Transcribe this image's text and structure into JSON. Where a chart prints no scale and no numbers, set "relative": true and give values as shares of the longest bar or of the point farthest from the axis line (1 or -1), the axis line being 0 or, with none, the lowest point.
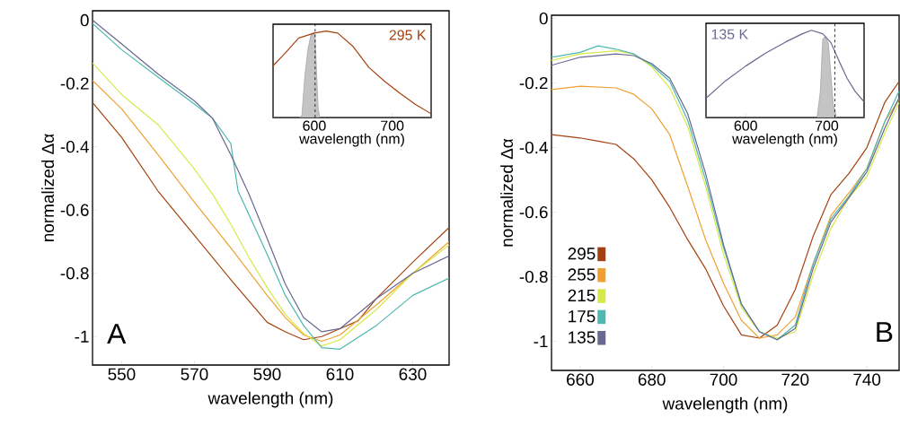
{
  "chart_data": [
    {
      "type": "line",
      "xlabel": "wavelength (nm)",
      "ylabel": "normalized Δα",
      "xlim": [
        542,
        640
      ],
      "ylim": [
        -1.09,
        0.03
      ],
      "xticks": [
        550,
        570,
        590,
        610,
        630
      ],
      "yticks": [
        0,
        -0.2,
        -0.4,
        -0.6,
        -0.8,
        -1
      ],
      "marker": "none",
      "line_style": "solid",
      "annotations": [
        "A"
      ],
      "series": [
        {
          "color": "#a5410e",
          "x": [
            542,
            550,
            560,
            570,
            580,
            590,
            595,
            600,
            605,
            610,
            615,
            620,
            630,
            640
          ],
          "values": [
            -0.26,
            -0.37,
            -0.54,
            -0.68,
            -0.82,
            -0.955,
            -0.985,
            -1.01,
            -1.0,
            -0.975,
            -0.95,
            -0.88,
            -0.765,
            -0.655
          ]
        },
        {
          "color": "#f0a030",
          "x": [
            542,
            550,
            560,
            570,
            580,
            590,
            595,
            600,
            605,
            610,
            620,
            630,
            640
          ],
          "values": [
            -0.19,
            -0.28,
            -0.425,
            -0.575,
            -0.72,
            -0.87,
            -0.94,
            -0.995,
            -1.015,
            -0.995,
            -0.9,
            -0.8,
            -0.7
          ]
        },
        {
          "color": "#d8e84a",
          "x": [
            542,
            550,
            560,
            570,
            575,
            580,
            585,
            590,
            595,
            600,
            605,
            610,
            620,
            630,
            640
          ],
          "values": [
            -0.135,
            -0.235,
            -0.33,
            -0.47,
            -0.55,
            -0.645,
            -0.75,
            -0.845,
            -0.93,
            -0.99,
            -1.03,
            -1.01,
            -0.915,
            -0.8,
            -0.71
          ]
        },
        {
          "color": "#4fb8b0",
          "x": [
            542,
            550,
            560,
            570,
            575,
            580,
            582,
            585,
            590,
            595,
            600,
            605,
            610,
            620,
            630,
            640
          ],
          "values": [
            -0.01,
            -0.093,
            -0.18,
            -0.265,
            -0.31,
            -0.39,
            -0.54,
            -0.615,
            -0.74,
            -0.87,
            -0.965,
            -1.035,
            -1.04,
            -0.965,
            -0.87,
            -0.815
          ]
        },
        {
          "color": "#686890",
          "x": [
            542,
            550,
            560,
            570,
            575,
            580,
            585,
            590,
            595,
            600,
            605,
            610,
            620,
            630,
            640
          ],
          "values": [
            0,
            -0.075,
            -0.17,
            -0.255,
            -0.31,
            -0.425,
            -0.55,
            -0.69,
            -0.835,
            -0.94,
            -0.985,
            -0.975,
            -0.88,
            -0.8,
            -0.745
          ]
        }
      ]
    },
    {
      "type": "line",
      "xlabel": "wavelength (nm)",
      "xlim": [
        547,
        750
      ],
      "xticks": [
        600,
        700
      ],
      "relative": true,
      "marker": "none",
      "line_style": "solid",
      "ref_lines": [
        {
          "axis": "x",
          "value": 601,
          "color": "#000000",
          "line_style": "dashed"
        }
      ],
      "series": [
        {
          "type": "area",
          "color": "#c4c4c4",
          "x": [
            547,
            580,
            584,
            588,
            592,
            596,
            599,
            601,
            603,
            605,
            607,
            750
          ],
          "values": [
            0,
            0,
            0.02,
            0.5,
            0.8,
            0.97,
            0.98,
            0.95,
            0.5,
            0.1,
            0,
            0
          ]
        },
        {
          "name": "295 K",
          "color": "#a5410e",
          "x": [
            547,
            560,
            580,
            600,
            615,
            630,
            650,
            670,
            690,
            710,
            730,
            750
          ],
          "values": [
            0.6,
            0.72,
            0.92,
            0.977,
            1.0,
            0.977,
            0.82,
            0.58,
            0.42,
            0.28,
            0.15,
            0.043
          ]
        }
      ]
    },
    {
      "type": "line",
      "xlabel": "wavelength (nm)",
      "ylabel": "normalized Δα",
      "xlim": [
        652,
        749
      ],
      "ylim": [
        -1.09,
        0.01
      ],
      "xticks": [
        660,
        680,
        700,
        720,
        740
      ],
      "yticks": [
        0,
        -0.2,
        -0.4,
        -0.6,
        -0.8,
        -1
      ],
      "marker": "none",
      "line_style": "solid",
      "legend": "bottom left",
      "annotations": [
        "B"
      ],
      "series": [
        {
          "name": "295",
          "color": "#a5410e",
          "x": [
            652,
            660,
            665,
            670,
            675,
            680,
            685,
            690,
            695,
            700,
            705,
            710,
            715,
            720,
            725,
            730,
            735,
            740,
            745,
            749
          ],
          "values": [
            -0.36,
            -0.37,
            -0.38,
            -0.39,
            -0.435,
            -0.5,
            -0.585,
            -0.685,
            -0.775,
            -0.89,
            -0.98,
            -0.99,
            -0.95,
            -0.84,
            -0.675,
            -0.545,
            -0.48,
            -0.4,
            -0.26,
            -0.195
          ]
        },
        {
          "name": "255",
          "color": "#f0a030",
          "x": [
            652,
            660,
            670,
            675,
            680,
            685,
            690,
            695,
            700,
            705,
            710,
            715,
            720,
            725,
            730,
            735,
            740,
            745,
            749
          ],
          "values": [
            -0.22,
            -0.21,
            -0.215,
            -0.235,
            -0.28,
            -0.36,
            -0.52,
            -0.685,
            -0.82,
            -0.935,
            -0.99,
            -0.98,
            -0.925,
            -0.76,
            -0.61,
            -0.54,
            -0.465,
            -0.32,
            -0.25
          ]
        },
        {
          "name": "215",
          "color": "#d8e84a",
          "x": [
            652,
            660,
            670,
            675,
            680,
            685,
            690,
            695,
            700,
            705,
            710,
            715,
            720,
            725,
            730,
            735,
            740,
            745,
            749
          ],
          "values": [
            -0.13,
            -0.11,
            -0.1,
            -0.11,
            -0.15,
            -0.215,
            -0.335,
            -0.52,
            -0.73,
            -0.895,
            -0.97,
            -0.99,
            -0.97,
            -0.795,
            -0.65,
            -0.555,
            -0.49,
            -0.355,
            -0.26
          ]
        },
        {
          "name": "175",
          "color": "#4fb8b0",
          "x": [
            652,
            660,
            665,
            670,
            675,
            680,
            685,
            690,
            695,
            700,
            705,
            710,
            715,
            720,
            725,
            730,
            735,
            740,
            745,
            749
          ],
          "values": [
            -0.12,
            -0.105,
            -0.085,
            -0.095,
            -0.11,
            -0.145,
            -0.195,
            -0.315,
            -0.5,
            -0.71,
            -0.885,
            -0.97,
            -0.995,
            -0.95,
            -0.76,
            -0.62,
            -0.55,
            -0.465,
            -0.32,
            -0.225
          ]
        },
        {
          "name": "135",
          "color": "#686890",
          "x": [
            652,
            660,
            670,
            675,
            680,
            685,
            690,
            695,
            700,
            705,
            710,
            715,
            720,
            725,
            730,
            735,
            740,
            745,
            749
          ],
          "values": [
            -0.145,
            -0.12,
            -0.11,
            -0.115,
            -0.14,
            -0.185,
            -0.295,
            -0.48,
            -0.7,
            -0.885,
            -0.97,
            -0.995,
            -0.96,
            -0.775,
            -0.63,
            -0.555,
            -0.475,
            -0.34,
            -0.245
          ]
        }
      ]
    },
    {
      "type": "line",
      "xlabel": "wavelength (nm)",
      "xlim": [
        551,
        746
      ],
      "xticks": [
        600,
        700
      ],
      "relative": true,
      "marker": "none",
      "line_style": "solid",
      "ref_lines": [
        {
          "axis": "x",
          "value": 710,
          "color": "#000000",
          "line_style": "dashed"
        }
      ],
      "series": [
        {
          "type": "area",
          "color": "#c4c4c4",
          "x": [
            551,
            688,
            692,
            695,
            698,
            702,
            705,
            708,
            712,
            746
          ],
          "values": [
            0,
            0,
            0.3,
            0.9,
            0.93,
            0.85,
            0.5,
            0.15,
            0,
            0
          ]
        },
        {
          "name": "135 K",
          "color": "#686890",
          "x": [
            551,
            575,
            600,
            625,
            650,
            670,
            681,
            695,
            705,
            715,
            725,
            735,
            746
          ],
          "values": [
            0.22,
            0.42,
            0.59,
            0.74,
            0.87,
            0.96,
            1.0,
            0.96,
            0.86,
            0.65,
            0.45,
            0.3,
            0.18
          ]
        }
      ]
    }
  ]
}
